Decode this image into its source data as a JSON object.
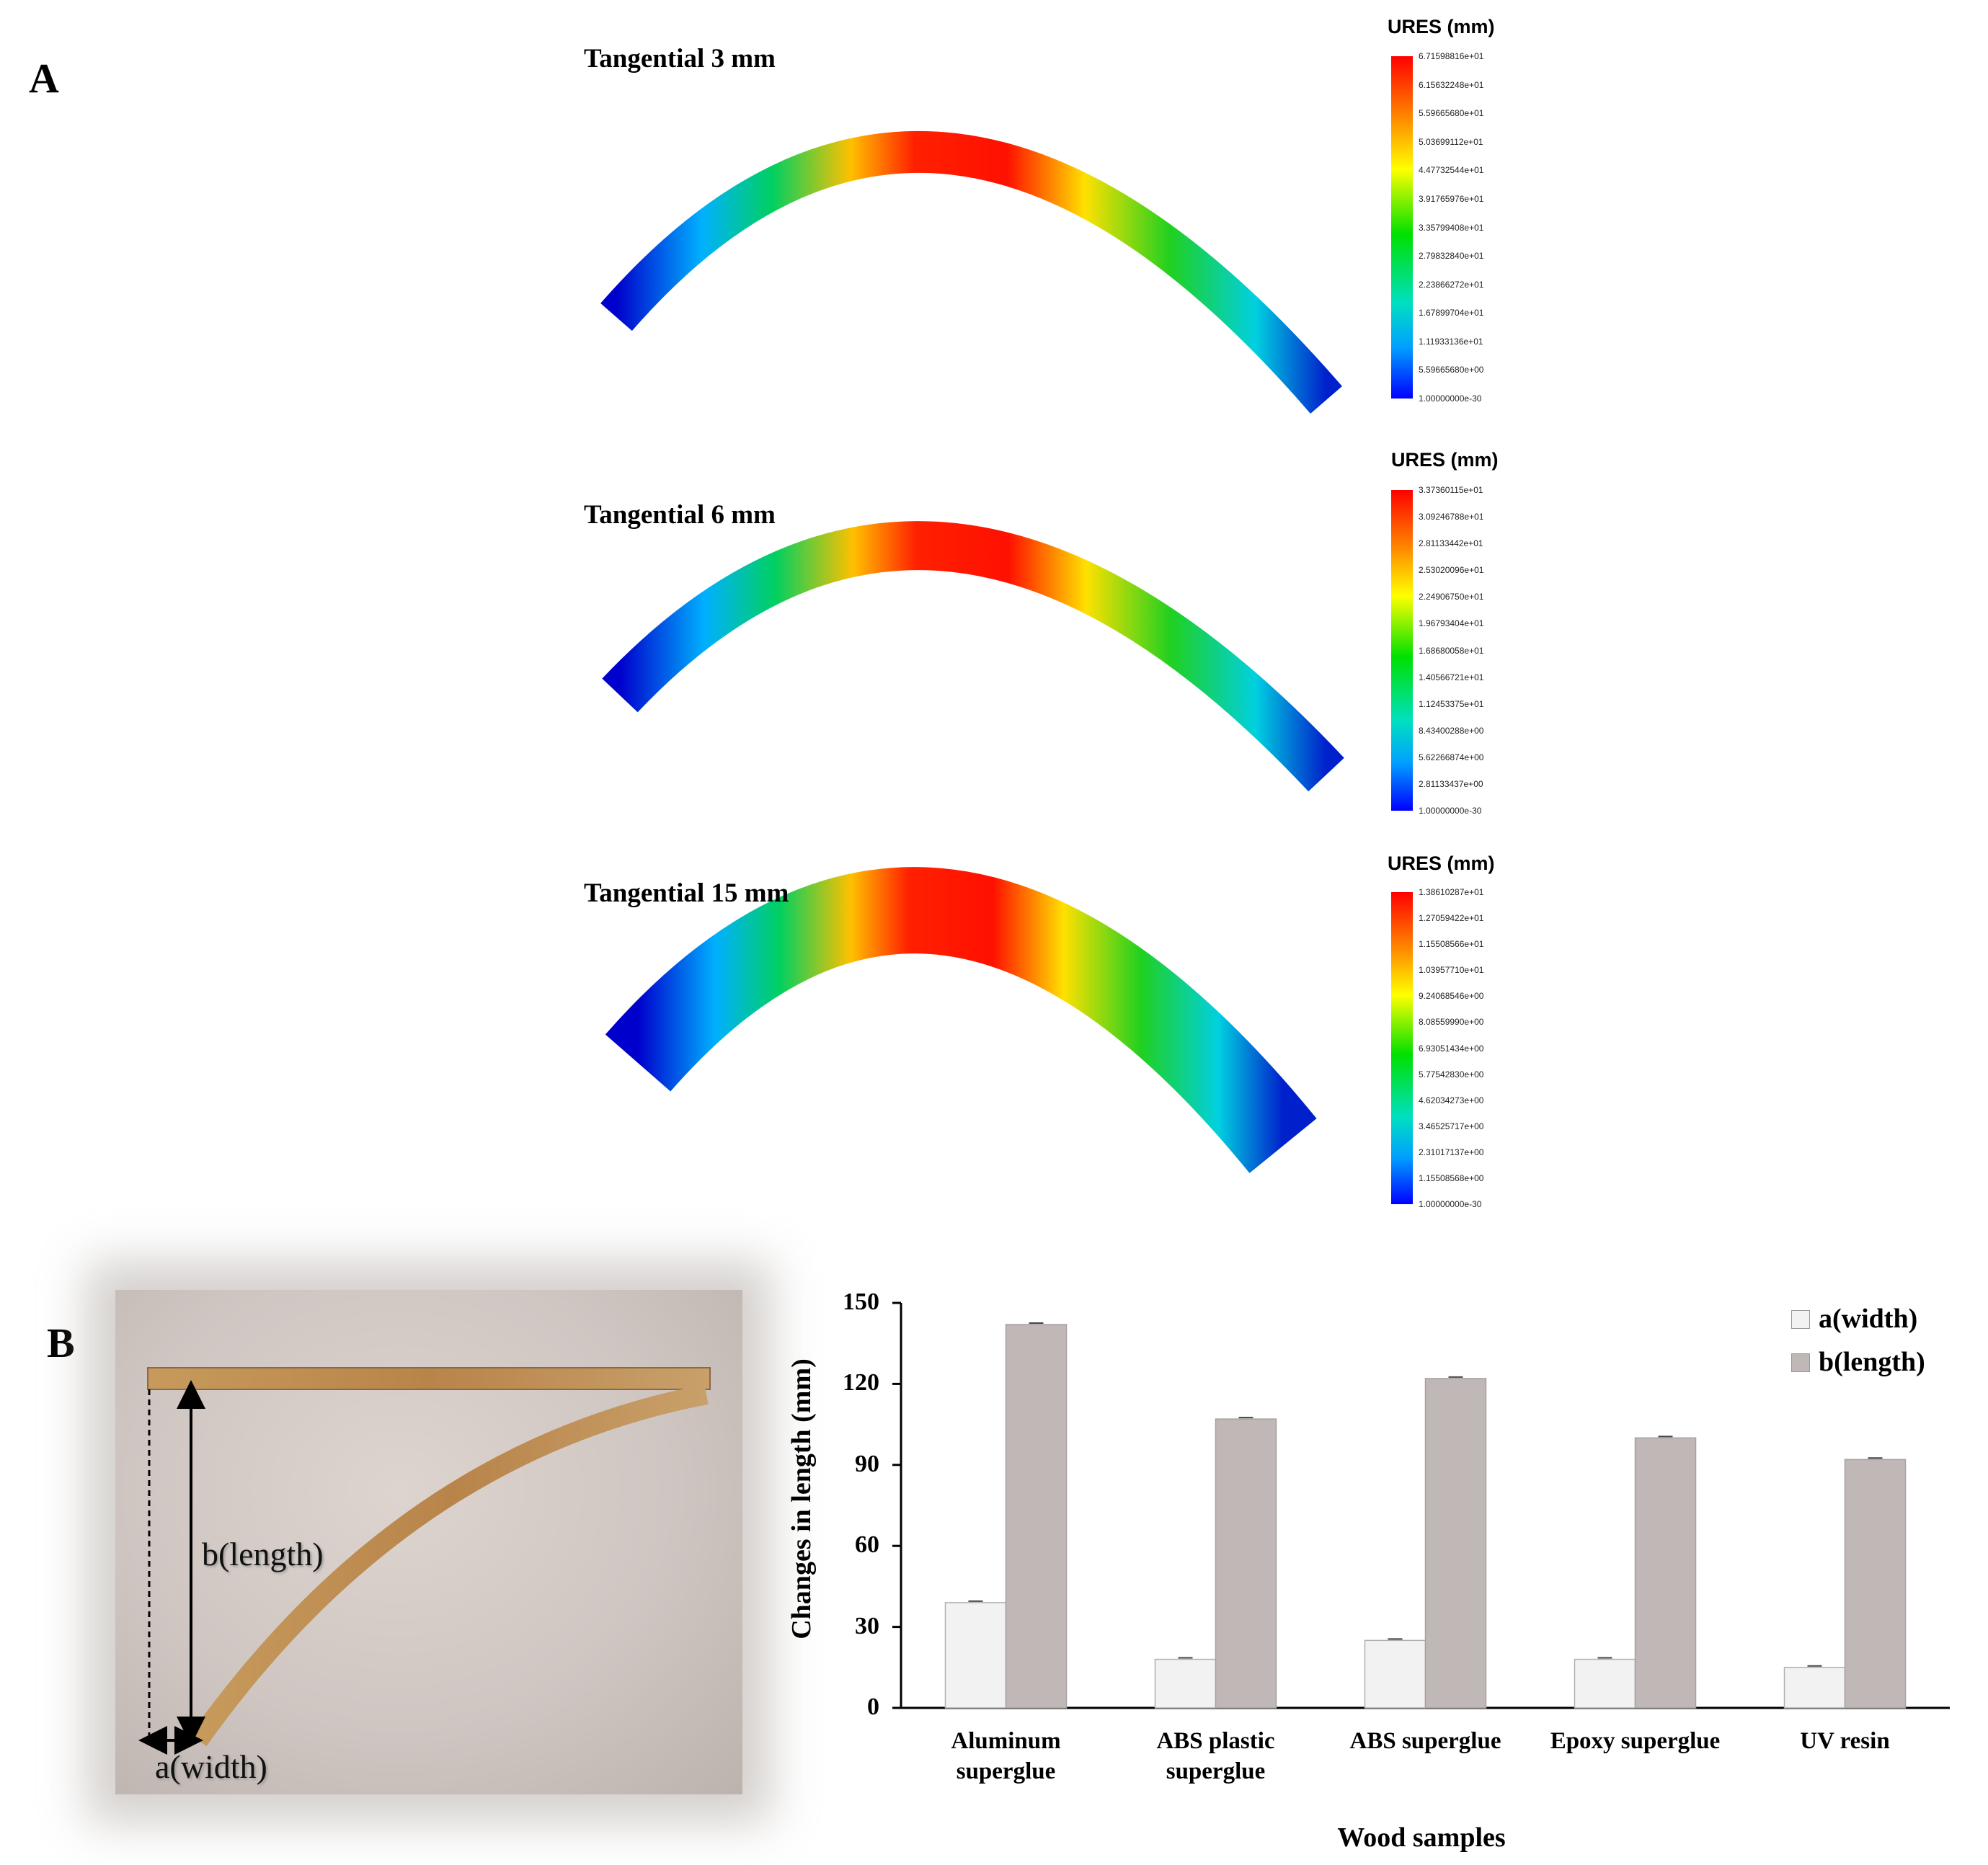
{
  "panels": {
    "a": "A",
    "b": "B"
  },
  "simulations": [
    {
      "title": "Tangential  3 mm",
      "legend_title": "URES (mm)",
      "ticks": [
        "6.71598816e+01",
        "6.15632248e+01",
        "5.59665680e+01",
        "5.03699112e+01",
        "4.47732544e+01",
        "3.91765976e+01",
        "3.35799408e+01",
        "2.79832840e+01",
        "2.23866272e+01",
        "1.67899704e+01",
        "1.11933136e+01",
        "5.59665680e+00",
        "1.00000000e-30"
      ]
    },
    {
      "title": "Tangential  6 mm",
      "legend_title": "URES (mm)",
      "ticks": [
        "3.37360115e+01",
        "3.09246788e+01",
        "2.81133442e+01",
        "2.53020096e+01",
        "2.24906750e+01",
        "1.96793404e+01",
        "1.68680058e+01",
        "1.40566721e+01",
        "1.12453375e+01",
        "8.43400288e+00",
        "5.62266874e+00",
        "2.81133437e+00",
        "1.00000000e-30"
      ]
    },
    {
      "title": "Tangential  15 mm",
      "legend_title": "URES (mm)",
      "ticks": [
        "1.38610287e+01",
        "1.27059422e+01",
        "1.15508566e+01",
        "1.03957710e+01",
        "9.24068546e+00",
        "8.08559990e+00",
        "6.93051434e+00",
        "5.77542830e+00",
        "4.62034273e+00",
        "3.46525717e+00",
        "2.31017137e+00",
        "1.15508568e+00",
        "1.00000000e-30"
      ]
    }
  ],
  "photo": {
    "length_label": "b(length)",
    "width_label": "a(width)"
  },
  "chart_data": {
    "type": "bar",
    "categories": [
      "Aluminum superglue",
      "ABS plastic superglue",
      "ABS superglue",
      "Epoxy superglue",
      "UV resin"
    ],
    "category_lines": [
      [
        "Aluminum",
        "superglue"
      ],
      [
        "ABS plastic",
        "superglue"
      ],
      [
        "ABS superglue"
      ],
      [
        "Epoxy superglue"
      ],
      [
        "UV resin"
      ]
    ],
    "series": [
      {
        "name": "a(width)",
        "values": [
          39,
          18,
          25,
          18,
          15
        ],
        "color": "#f2f2f2"
      },
      {
        "name": "b(length)",
        "values": [
          142,
          107,
          122,
          100,
          92
        ],
        "color": "#bfb8b6"
      }
    ],
    "xlabel": "Wood samples",
    "ylabel": "Changes in length (mm)",
    "ylim": [
      0,
      150
    ],
    "yticks": [
      0,
      30,
      60,
      90,
      120,
      150
    ],
    "legend": "top-right"
  }
}
